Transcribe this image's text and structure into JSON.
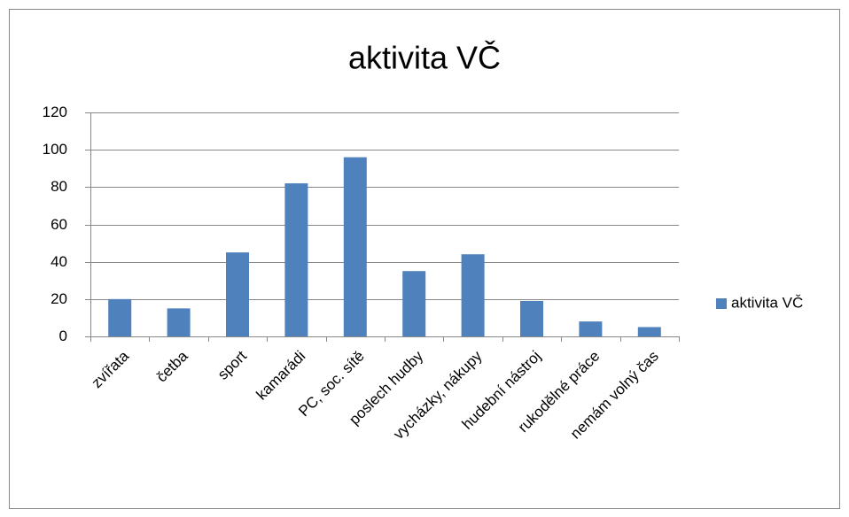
{
  "chart_data": {
    "type": "bar",
    "title": "aktivita VČ",
    "categories": [
      "zvířata",
      "četba",
      "sport",
      "kamarádi",
      "PC, soc. sítě",
      "poslech hudby",
      "vycházky, nákupy",
      "hudební nástroj",
      "rukodělné práce",
      "nemám volný čas"
    ],
    "series": [
      {
        "name": "aktivita VČ",
        "color": "#4f81bd",
        "values": [
          20,
          15,
          45,
          82,
          96,
          35,
          44,
          19,
          8,
          5
        ]
      }
    ],
    "ylim": [
      0,
      120
    ],
    "yticks": [
      0,
      20,
      40,
      60,
      80,
      100,
      120
    ],
    "grid": true,
    "legend": "right"
  }
}
